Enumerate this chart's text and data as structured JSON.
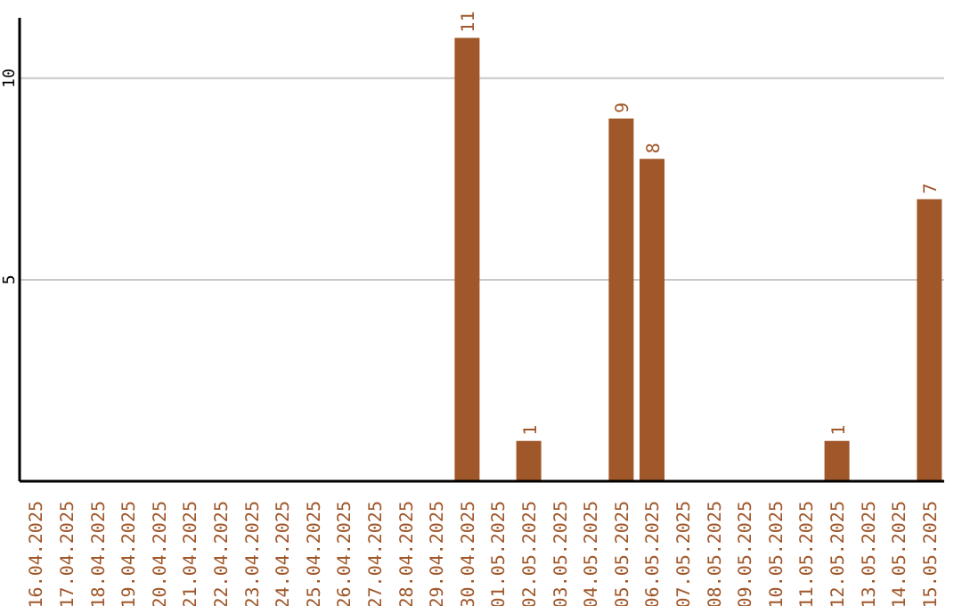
{
  "chart_data": {
    "type": "bar",
    "categories": [
      "16.04.2025",
      "17.04.2025",
      "18.04.2025",
      "19.04.2025",
      "20.04.2025",
      "21.04.2025",
      "22.04.2025",
      "23.04.2025",
      "24.04.2025",
      "25.04.2025",
      "26.04.2025",
      "27.04.2025",
      "28.04.2025",
      "29.04.2025",
      "30.04.2025",
      "01.05.2025",
      "02.05.2025",
      "03.05.2025",
      "04.05.2025",
      "05.05.2025",
      "06.05.2025",
      "07.05.2025",
      "08.05.2025",
      "09.05.2025",
      "10.05.2025",
      "11.05.2025",
      "12.05.2025",
      "13.05.2025",
      "14.05.2025",
      "15.05.2025"
    ],
    "values": [
      0,
      0,
      0,
      0,
      0,
      0,
      0,
      0,
      0,
      0,
      0,
      0,
      0,
      0,
      11,
      0,
      1,
      0,
      0,
      9,
      8,
      0,
      0,
      0,
      0,
      0,
      1,
      0,
      0,
      7
    ],
    "value_labels": [
      null,
      null,
      null,
      null,
      null,
      null,
      null,
      null,
      null,
      null,
      null,
      null,
      null,
      null,
      "11",
      null,
      "1",
      null,
      null,
      "9",
      "8",
      null,
      null,
      null,
      null,
      null,
      "1",
      null,
      null,
      "7"
    ],
    "color": "#a0572a",
    "ylim": [
      0,
      11.5
    ],
    "yticks": [
      5,
      10
    ],
    "grid": "y"
  }
}
